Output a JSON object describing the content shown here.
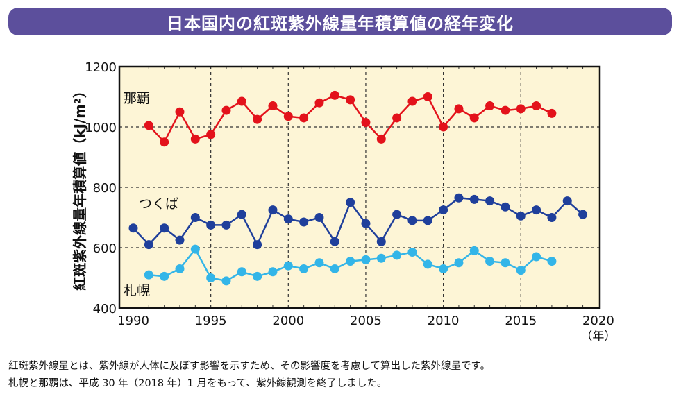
{
  "title": "日本国内の紅斑紫外線量年積算値の経年変化",
  "chart_data": {
    "type": "line",
    "title": "日本国内の紅斑紫外線量年積算値の経年変化",
    "ylabel": "紅斑紫外線量年積算値（kJ/m²）",
    "xlabel": "（年）",
    "xlim": [
      1990,
      2020
    ],
    "ylim": [
      400,
      1200
    ],
    "xticks": [
      1990,
      1995,
      2000,
      2005,
      2010,
      2015,
      2020
    ],
    "yticks": [
      400,
      600,
      800,
      1000,
      1200
    ],
    "grid": true,
    "background": "#fdf5d6",
    "series": [
      {
        "name": "那覇",
        "color": "#e3121b",
        "x": [
          1991,
          1992,
          1993,
          1994,
          1995,
          1996,
          1997,
          1998,
          1999,
          2000,
          2001,
          2002,
          2003,
          2004,
          2005,
          2006,
          2007,
          2008,
          2009,
          2010,
          2011,
          2012,
          2013,
          2014,
          2015,
          2016,
          2017
        ],
        "values": [
          1005,
          950,
          1050,
          960,
          975,
          1055,
          1085,
          1025,
          1070,
          1035,
          1030,
          1080,
          1105,
          1090,
          1015,
          960,
          1030,
          1085,
          1100,
          1000,
          1060,
          1030,
          1070,
          1055,
          1060,
          1070,
          1045
        ]
      },
      {
        "name": "つくば",
        "color": "#1f3f9b",
        "x": [
          1990,
          1991,
          1992,
          1993,
          1994,
          1995,
          1996,
          1997,
          1998,
          1999,
          2000,
          2001,
          2002,
          2003,
          2004,
          2005,
          2006,
          2007,
          2008,
          2009,
          2010,
          2011,
          2012,
          2013,
          2014,
          2015,
          2016,
          2017,
          2018,
          2019
        ],
        "values": [
          665,
          610,
          665,
          625,
          700,
          675,
          675,
          710,
          610,
          725,
          695,
          685,
          700,
          620,
          750,
          680,
          620,
          710,
          690,
          690,
          725,
          765,
          760,
          755,
          735,
          705,
          725,
          700,
          755,
          710
        ]
      },
      {
        "name": "札幌",
        "color": "#33b5e8",
        "x": [
          1991,
          1992,
          1993,
          1994,
          1995,
          1996,
          1997,
          1998,
          1999,
          2000,
          2001,
          2002,
          2003,
          2004,
          2005,
          2006,
          2007,
          2008,
          2009,
          2010,
          2011,
          2012,
          2013,
          2014,
          2015,
          2016,
          2017
        ],
        "values": [
          510,
          505,
          530,
          595,
          500,
          490,
          520,
          505,
          520,
          540,
          530,
          550,
          530,
          555,
          560,
          565,
          575,
          585,
          545,
          530,
          550,
          590,
          555,
          550,
          525,
          570,
          555
        ]
      }
    ]
  },
  "footnotes": [
    "紅斑紫外線量とは、紫外線が人体に及ぼす影響を示すため、その影響度を考慮して算出した紫外線量です。",
    "札幌と那覇は、平成 30 年（2018 年）1 月をもって、紫外線観測を終了しました。"
  ]
}
